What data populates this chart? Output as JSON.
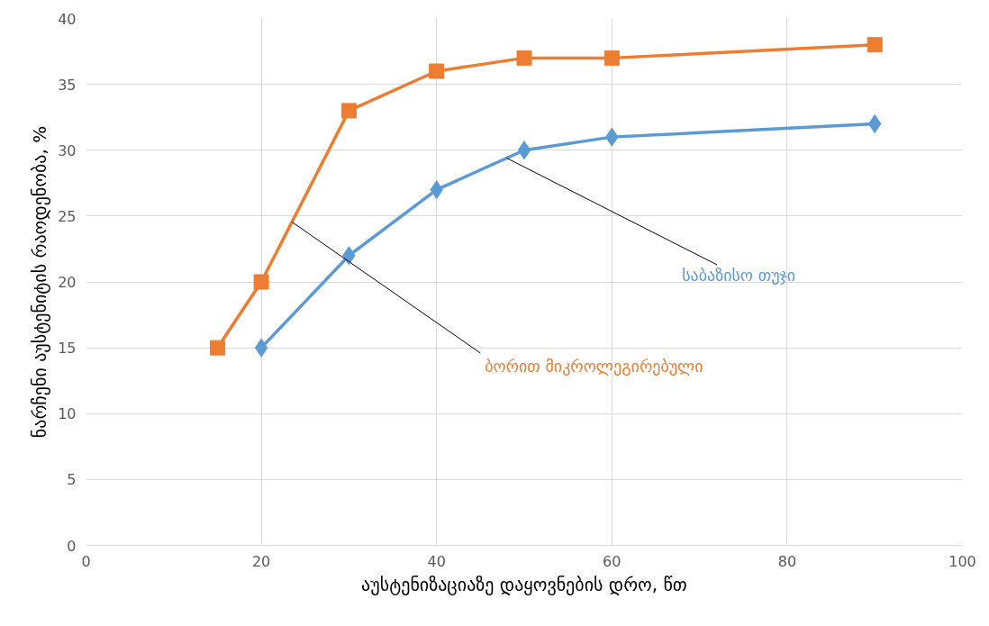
{
  "chart_data": {
    "type": "line",
    "xlabel": "აუსტენიზაციაზე დაყოვნების დრო, წთ",
    "ylabel": "ნარჩენი აუსტენიტის რაოდენობა, %",
    "xlim": [
      0,
      100
    ],
    "xticks": [
      0,
      20,
      40,
      60,
      80,
      100
    ],
    "ylim": [
      0,
      40
    ],
    "yticks": [
      0,
      5,
      10,
      15,
      20,
      25,
      30,
      35,
      40
    ],
    "grid": true,
    "legend": false,
    "series": [
      {
        "name": "საბაზისო თუჯი",
        "color": "#5b9bd5",
        "marker": "diamond",
        "x": [
          20,
          30,
          40,
          50,
          60,
          90
        ],
        "values": [
          15,
          22,
          27,
          30,
          31,
          32
        ]
      },
      {
        "name": "ბორით მიკროლეგირებული",
        "color": "#ed7d31",
        "marker": "square",
        "x": [
          15,
          20,
          30,
          40,
          50,
          60,
          90
        ],
        "values": [
          15,
          20,
          33,
          36,
          37,
          37,
          38
        ]
      }
    ]
  }
}
